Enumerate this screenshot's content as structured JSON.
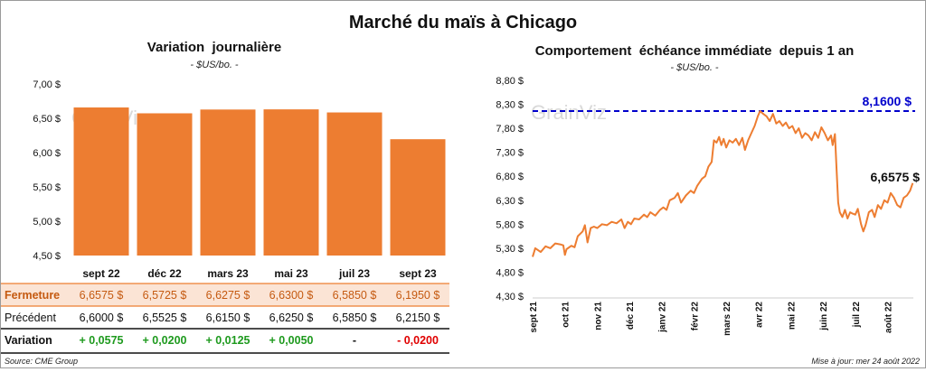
{
  "title": "Marché du maïs à Chicago",
  "source": "Source: CME Group",
  "updated": "Mise à jour: mer 24 août 2022",
  "watermark": "GrainViz",
  "colors": {
    "orange": "#ED7D31",
    "green": "#1E9A1E",
    "red": "#E00000",
    "blue": "#0000CC",
    "band": "#FBE4D5"
  },
  "chart_data": [
    {
      "type": "bar",
      "title": "Variation  journalière",
      "subtitle": "- $US/bo. -",
      "categories": [
        "sept 22",
        "déc 22",
        "mars 23",
        "mai 23",
        "juil 23",
        "sept 23"
      ],
      "series": [
        {
          "name": "Fermeture",
          "values": [
            6.6575,
            6.5725,
            6.6275,
            6.63,
            6.585,
            6.195
          ]
        }
      ],
      "ylim": [
        4.5,
        7.0
      ],
      "yticks": [
        "4,50 $",
        "5,00 $",
        "5,50 $",
        "6,00 $",
        "6,50 $",
        "7,00 $"
      ],
      "yticks_values": [
        4.5,
        5.0,
        5.5,
        6.0,
        6.5,
        7.0
      ],
      "table": {
        "rows": [
          {
            "label": "Fermeture",
            "cells": [
              "6,6575  $",
              "6,5725  $",
              "6,6275  $",
              "6,6300  $",
              "6,5850  $",
              "6,1950  $"
            ]
          },
          {
            "label": "Précédent",
            "cells": [
              "6,6000  $",
              "6,5525  $",
              "6,6150  $",
              "6,6250  $",
              "6,5850  $",
              "6,2150  $"
            ]
          },
          {
            "label": "Variation",
            "cells": [
              "+ 0,0575",
              "+ 0,0200",
              "+ 0,0125",
              "+ 0,0050",
              "-",
              "- 0,0200"
            ],
            "signs": [
              "pos",
              "pos",
              "pos",
              "pos",
              "zero",
              "neg"
            ]
          }
        ]
      }
    },
    {
      "type": "line",
      "title": "Comportement  échéance immédiate  depuis 1 an",
      "subtitle": "- $US/bo. -",
      "ylim": [
        4.3,
        8.8
      ],
      "yticks": [
        "4,30 $",
        "4,80 $",
        "5,30 $",
        "5,80 $",
        "6,30 $",
        "6,80 $",
        "7,30 $",
        "7,80 $",
        "8,30 $",
        "8,80 $"
      ],
      "yticks_values": [
        4.3,
        4.8,
        5.3,
        5.8,
        6.3,
        6.8,
        7.3,
        7.8,
        8.3,
        8.8
      ],
      "xticks": [
        "sept 21",
        "oct 21",
        "nov 21",
        "déc 21",
        "janv 22",
        "févr 22",
        "mars 22",
        "avr 22",
        "mai 22",
        "juin 22",
        "juil 22",
        "août 22"
      ],
      "x_range_months": [
        0,
        11.8
      ],
      "max_label": "8,1600 $",
      "max_value": 8.16,
      "last_label": "6,6575 $",
      "last_value": 6.6575,
      "points": [
        [
          0.0,
          5.12
        ],
        [
          0.08,
          5.3
        ],
        [
          0.25,
          5.22
        ],
        [
          0.4,
          5.34
        ],
        [
          0.55,
          5.3
        ],
        [
          0.7,
          5.4
        ],
        [
          0.85,
          5.38
        ],
        [
          0.95,
          5.36
        ],
        [
          1.0,
          5.16
        ],
        [
          1.05,
          5.28
        ],
        [
          1.2,
          5.35
        ],
        [
          1.3,
          5.32
        ],
        [
          1.4,
          5.55
        ],
        [
          1.55,
          5.65
        ],
        [
          1.62,
          5.78
        ],
        [
          1.7,
          5.42
        ],
        [
          1.8,
          5.72
        ],
        [
          1.9,
          5.75
        ],
        [
          2.0,
          5.72
        ],
        [
          2.15,
          5.8
        ],
        [
          2.3,
          5.78
        ],
        [
          2.45,
          5.85
        ],
        [
          2.6,
          5.82
        ],
        [
          2.75,
          5.9
        ],
        [
          2.85,
          5.72
        ],
        [
          2.95,
          5.85
        ],
        [
          3.05,
          5.8
        ],
        [
          3.15,
          5.92
        ],
        [
          3.3,
          5.9
        ],
        [
          3.45,
          6.0
        ],
        [
          3.55,
          5.95
        ],
        [
          3.65,
          6.05
        ],
        [
          3.8,
          5.98
        ],
        [
          3.95,
          6.1
        ],
        [
          4.05,
          6.15
        ],
        [
          4.15,
          6.1
        ],
        [
          4.25,
          6.3
        ],
        [
          4.4,
          6.35
        ],
        [
          4.5,
          6.45
        ],
        [
          4.6,
          6.25
        ],
        [
          4.75,
          6.4
        ],
        [
          4.9,
          6.5
        ],
        [
          5.0,
          6.45
        ],
        [
          5.1,
          6.6
        ],
        [
          5.25,
          6.75
        ],
        [
          5.35,
          6.8
        ],
        [
          5.45,
          7.0
        ],
        [
          5.55,
          7.1
        ],
        [
          5.62,
          7.55
        ],
        [
          5.7,
          7.5
        ],
        [
          5.78,
          7.62
        ],
        [
          5.85,
          7.45
        ],
        [
          5.92,
          7.58
        ],
        [
          6.0,
          7.4
        ],
        [
          6.1,
          7.55
        ],
        [
          6.2,
          7.5
        ],
        [
          6.3,
          7.58
        ],
        [
          6.4,
          7.45
        ],
        [
          6.5,
          7.6
        ],
        [
          6.58,
          7.35
        ],
        [
          6.68,
          7.55
        ],
        [
          6.78,
          7.7
        ],
        [
          6.88,
          7.85
        ],
        [
          6.98,
          8.05
        ],
        [
          7.05,
          8.16
        ],
        [
          7.15,
          8.1
        ],
        [
          7.25,
          8.05
        ],
        [
          7.35,
          7.95
        ],
        [
          7.45,
          8.1
        ],
        [
          7.55,
          7.9
        ],
        [
          7.65,
          7.95
        ],
        [
          7.75,
          7.85
        ],
        [
          7.85,
          7.92
        ],
        [
          7.95,
          7.8
        ],
        [
          8.05,
          7.85
        ],
        [
          8.15,
          7.7
        ],
        [
          8.25,
          7.8
        ],
        [
          8.35,
          7.6
        ],
        [
          8.45,
          7.7
        ],
        [
          8.55,
          7.65
        ],
        [
          8.65,
          7.55
        ],
        [
          8.75,
          7.72
        ],
        [
          8.85,
          7.6
        ],
        [
          8.95,
          7.82
        ],
        [
          9.05,
          7.7
        ],
        [
          9.15,
          7.55
        ],
        [
          9.25,
          7.65
        ],
        [
          9.3,
          7.45
        ],
        [
          9.37,
          7.68
        ],
        [
          9.42,
          6.95
        ],
        [
          9.47,
          6.25
        ],
        [
          9.52,
          6.05
        ],
        [
          9.6,
          5.95
        ],
        [
          9.68,
          6.1
        ],
        [
          9.76,
          5.92
        ],
        [
          9.84,
          6.05
        ],
        [
          9.92,
          6.02
        ],
        [
          10.0,
          6.0
        ],
        [
          10.08,
          6.12
        ],
        [
          10.18,
          5.8
        ],
        [
          10.25,
          5.65
        ],
        [
          10.32,
          5.78
        ],
        [
          10.42,
          6.05
        ],
        [
          10.52,
          6.1
        ],
        [
          10.6,
          5.95
        ],
        [
          10.7,
          6.2
        ],
        [
          10.8,
          6.12
        ],
        [
          10.9,
          6.3
        ],
        [
          11.0,
          6.25
        ],
        [
          11.1,
          6.45
        ],
        [
          11.2,
          6.35
        ],
        [
          11.3,
          6.2
        ],
        [
          11.4,
          6.15
        ],
        [
          11.5,
          6.35
        ],
        [
          11.6,
          6.4
        ],
        [
          11.7,
          6.5
        ],
        [
          11.78,
          6.6575
        ]
      ]
    }
  ]
}
